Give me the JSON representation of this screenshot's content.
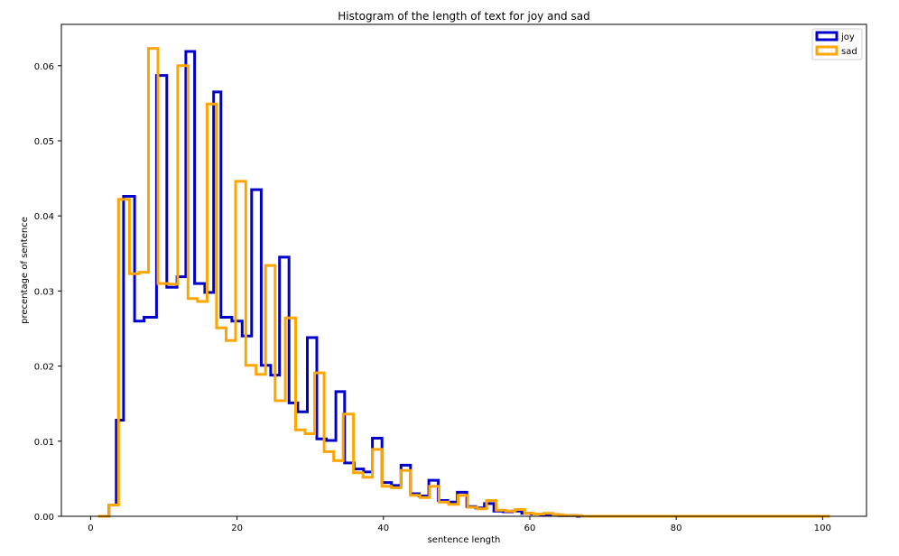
{
  "chart_data": {
    "type": "histogram-step",
    "title": "Histogram of the length of text for joy and sad",
    "xlabel": "sentence length",
    "ylabel": "precentage of sentence",
    "xlim": [
      -4.0,
      106.0
    ],
    "ylim": [
      0.0,
      0.0655
    ],
    "xticks": [
      0,
      20,
      40,
      60,
      80,
      100
    ],
    "yticks": [
      0.0,
      0.01,
      0.02,
      0.03,
      0.04,
      0.05,
      0.06
    ],
    "grid": false,
    "legend_position": "top-right",
    "series": [
      {
        "name": "joy",
        "color": "#0000cc",
        "bins": [
          [
            1.5,
            2.5,
            0.0
          ],
          [
            2.5,
            3.5,
            0.0015
          ],
          [
            3.5,
            4.5,
            0.0128
          ],
          [
            4.5,
            6.0,
            0.0426
          ],
          [
            6.0,
            7.3,
            0.026
          ],
          [
            7.3,
            9.0,
            0.0265
          ],
          [
            9.0,
            10.4,
            0.0587
          ],
          [
            10.4,
            11.8,
            0.0305
          ],
          [
            11.8,
            13.0,
            0.0319
          ],
          [
            13.0,
            14.2,
            0.0619
          ],
          [
            14.2,
            15.6,
            0.031
          ],
          [
            15.6,
            16.8,
            0.0298
          ],
          [
            16.8,
            17.8,
            0.0565
          ],
          [
            17.8,
            19.3,
            0.0265
          ],
          [
            19.3,
            20.7,
            0.026
          ],
          [
            20.7,
            22.0,
            0.024
          ],
          [
            22.0,
            23.3,
            0.0435
          ],
          [
            23.3,
            24.6,
            0.0201
          ],
          [
            24.6,
            25.8,
            0.0188
          ],
          [
            25.8,
            27.1,
            0.0345
          ],
          [
            27.1,
            28.3,
            0.0151
          ],
          [
            28.3,
            29.6,
            0.0139
          ],
          [
            29.6,
            30.9,
            0.0238
          ],
          [
            30.9,
            32.2,
            0.0103
          ],
          [
            32.2,
            33.5,
            0.0101
          ],
          [
            33.5,
            34.7,
            0.0166
          ],
          [
            34.7,
            36.0,
            0.0071
          ],
          [
            36.0,
            37.3,
            0.0063
          ],
          [
            37.3,
            38.5,
            0.0059
          ],
          [
            38.5,
            39.8,
            0.0104
          ],
          [
            39.8,
            41.1,
            0.0045
          ],
          [
            41.1,
            42.4,
            0.0041
          ],
          [
            42.4,
            43.7,
            0.0068
          ],
          [
            43.7,
            44.9,
            0.003
          ],
          [
            44.9,
            46.2,
            0.0027
          ],
          [
            46.2,
            47.5,
            0.0048
          ],
          [
            47.5,
            48.8,
            0.0021
          ],
          [
            48.8,
            50.1,
            0.0019
          ],
          [
            50.1,
            51.4,
            0.0032
          ],
          [
            51.4,
            52.6,
            0.0013
          ],
          [
            52.6,
            53.8,
            0.0011
          ],
          [
            53.8,
            55.1,
            0.0017
          ],
          [
            55.1,
            56.4,
            0.0007
          ],
          [
            56.4,
            57.6,
            0.0006
          ],
          [
            57.6,
            58.9,
            0.0007
          ],
          [
            58.9,
            60.2,
            0.0004
          ],
          [
            60.2,
            61.5,
            0.0003
          ],
          [
            61.5,
            62.7,
            0.0002
          ],
          [
            62.7,
            64.0,
            0.0002
          ],
          [
            64.0,
            65.3,
            0.0001
          ],
          [
            65.3,
            66.5,
            0.0001
          ],
          [
            66.5,
            101.0,
            0.0
          ]
        ]
      },
      {
        "name": "sad",
        "color": "#ffa500",
        "bins": [
          [
            1.0,
            2.5,
            0.0
          ],
          [
            2.5,
            3.8,
            0.0015
          ],
          [
            3.8,
            5.3,
            0.0422
          ],
          [
            5.3,
            6.6,
            0.0323
          ],
          [
            6.6,
            7.9,
            0.0325
          ],
          [
            7.9,
            9.2,
            0.0623
          ],
          [
            9.2,
            10.6,
            0.031
          ],
          [
            10.6,
            11.9,
            0.0309
          ],
          [
            11.9,
            13.3,
            0.06
          ],
          [
            13.3,
            14.6,
            0.029
          ],
          [
            14.6,
            15.9,
            0.0286
          ],
          [
            15.9,
            17.2,
            0.0549
          ],
          [
            17.2,
            18.5,
            0.0251
          ],
          [
            18.5,
            19.8,
            0.0234
          ],
          [
            19.8,
            21.2,
            0.0446
          ],
          [
            21.2,
            22.6,
            0.0201
          ],
          [
            22.6,
            23.9,
            0.0189
          ],
          [
            23.9,
            25.2,
            0.0334
          ],
          [
            25.2,
            26.6,
            0.0154
          ],
          [
            26.6,
            28.0,
            0.0264
          ],
          [
            28.0,
            29.3,
            0.0115
          ],
          [
            29.3,
            30.6,
            0.011
          ],
          [
            30.6,
            31.9,
            0.0191
          ],
          [
            31.9,
            33.2,
            0.0086
          ],
          [
            33.2,
            34.5,
            0.0074
          ],
          [
            34.5,
            35.9,
            0.0136
          ],
          [
            35.9,
            37.2,
            0.0058
          ],
          [
            37.2,
            38.5,
            0.0052
          ],
          [
            38.5,
            39.8,
            0.0089
          ],
          [
            39.8,
            41.1,
            0.004
          ],
          [
            41.1,
            42.4,
            0.0038
          ],
          [
            42.4,
            43.7,
            0.0061
          ],
          [
            43.7,
            45.0,
            0.0028
          ],
          [
            45.0,
            46.3,
            0.0025
          ],
          [
            46.3,
            47.6,
            0.004
          ],
          [
            47.6,
            48.9,
            0.0019
          ],
          [
            48.9,
            50.2,
            0.0016
          ],
          [
            50.2,
            51.5,
            0.0028
          ],
          [
            51.5,
            52.8,
            0.0012
          ],
          [
            52.8,
            54.1,
            0.001
          ],
          [
            54.1,
            55.4,
            0.0021
          ],
          [
            55.4,
            56.7,
            0.0008
          ],
          [
            56.7,
            58.0,
            0.0007
          ],
          [
            58.0,
            59.3,
            0.0009
          ],
          [
            59.3,
            60.6,
            0.0004
          ],
          [
            60.6,
            61.9,
            0.0003
          ],
          [
            61.9,
            63.2,
            0.0004
          ],
          [
            63.2,
            64.5,
            0.0002
          ],
          [
            64.5,
            65.8,
            0.0001
          ],
          [
            65.8,
            67.1,
            0.0001
          ],
          [
            67.1,
            101.0,
            0.0
          ]
        ]
      }
    ]
  }
}
